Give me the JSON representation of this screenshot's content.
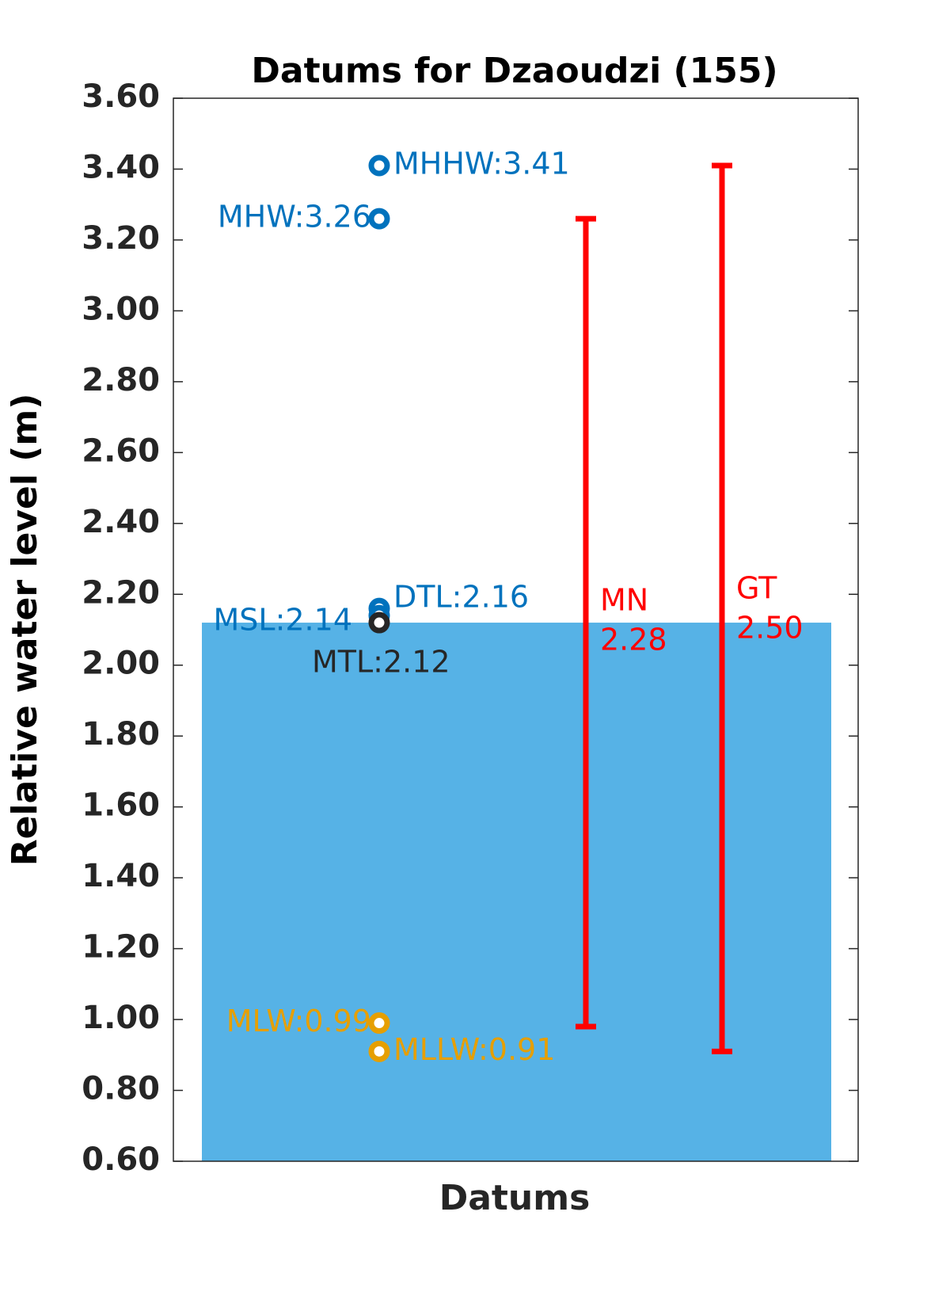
{
  "chart_data": {
    "type": "datums",
    "title": "Datums for Dzaoudzi (155)",
    "x_label": "Datums",
    "y_label": "Relative water level (m)",
    "ylim": [
      0.6,
      3.6
    ],
    "yticks": [
      {
        "value": 0.6,
        "label": "0.60"
      },
      {
        "value": 0.8,
        "label": "0.80"
      },
      {
        "value": 1,
        "label": "1.00"
      },
      {
        "value": 1.2,
        "label": "1.20"
      },
      {
        "value": 1.4,
        "label": "1.40"
      },
      {
        "value": 1.6,
        "label": "1.60"
      },
      {
        "value": 1.8,
        "label": "1.80"
      },
      {
        "value": 2,
        "label": "2.00"
      },
      {
        "value": 2.2,
        "label": "2.20"
      },
      {
        "value": 2.4,
        "label": "2.40"
      },
      {
        "value": 2.6,
        "label": "2.60"
      },
      {
        "value": 2.8,
        "label": "2.80"
      },
      {
        "value": 3,
        "label": "3.00"
      },
      {
        "value": 3.2,
        "label": "3.20"
      },
      {
        "value": 3.4,
        "label": "3.40"
      },
      {
        "value": 3.6,
        "label": "3.60"
      }
    ],
    "bar_value": 2.12,
    "bar_color": "#56b2e6",
    "points": [
      {
        "label": "MHHW:3.41",
        "value": 3.41,
        "color": "#0072bd"
      },
      {
        "label": "MHW:3.26",
        "value": 3.26,
        "color": "#0072bd"
      },
      {
        "label": "DTL:2.16",
        "value": 2.16,
        "color": "#0072bd"
      },
      {
        "label": "MSL:2.14",
        "value": 2.14,
        "color": "#0072bd"
      },
      {
        "label": "MTL:2.12",
        "value": 2.12,
        "color": "#262626"
      },
      {
        "label": "MLW:0.99",
        "value": 0.99,
        "color": "#e69f00"
      },
      {
        "label": "MLLW:0.91",
        "value": 0.91,
        "color": "#e69f00"
      }
    ],
    "ranges": [
      {
        "name": "MN",
        "value": 2.28,
        "value_label": "2.28",
        "low": 0.98,
        "high": 3.26,
        "color": "#ff0000"
      },
      {
        "name": "GT",
        "value": 2.5,
        "value_label": "2.50",
        "low": 0.91,
        "high": 3.41,
        "color": "#ff0000"
      }
    ]
  }
}
